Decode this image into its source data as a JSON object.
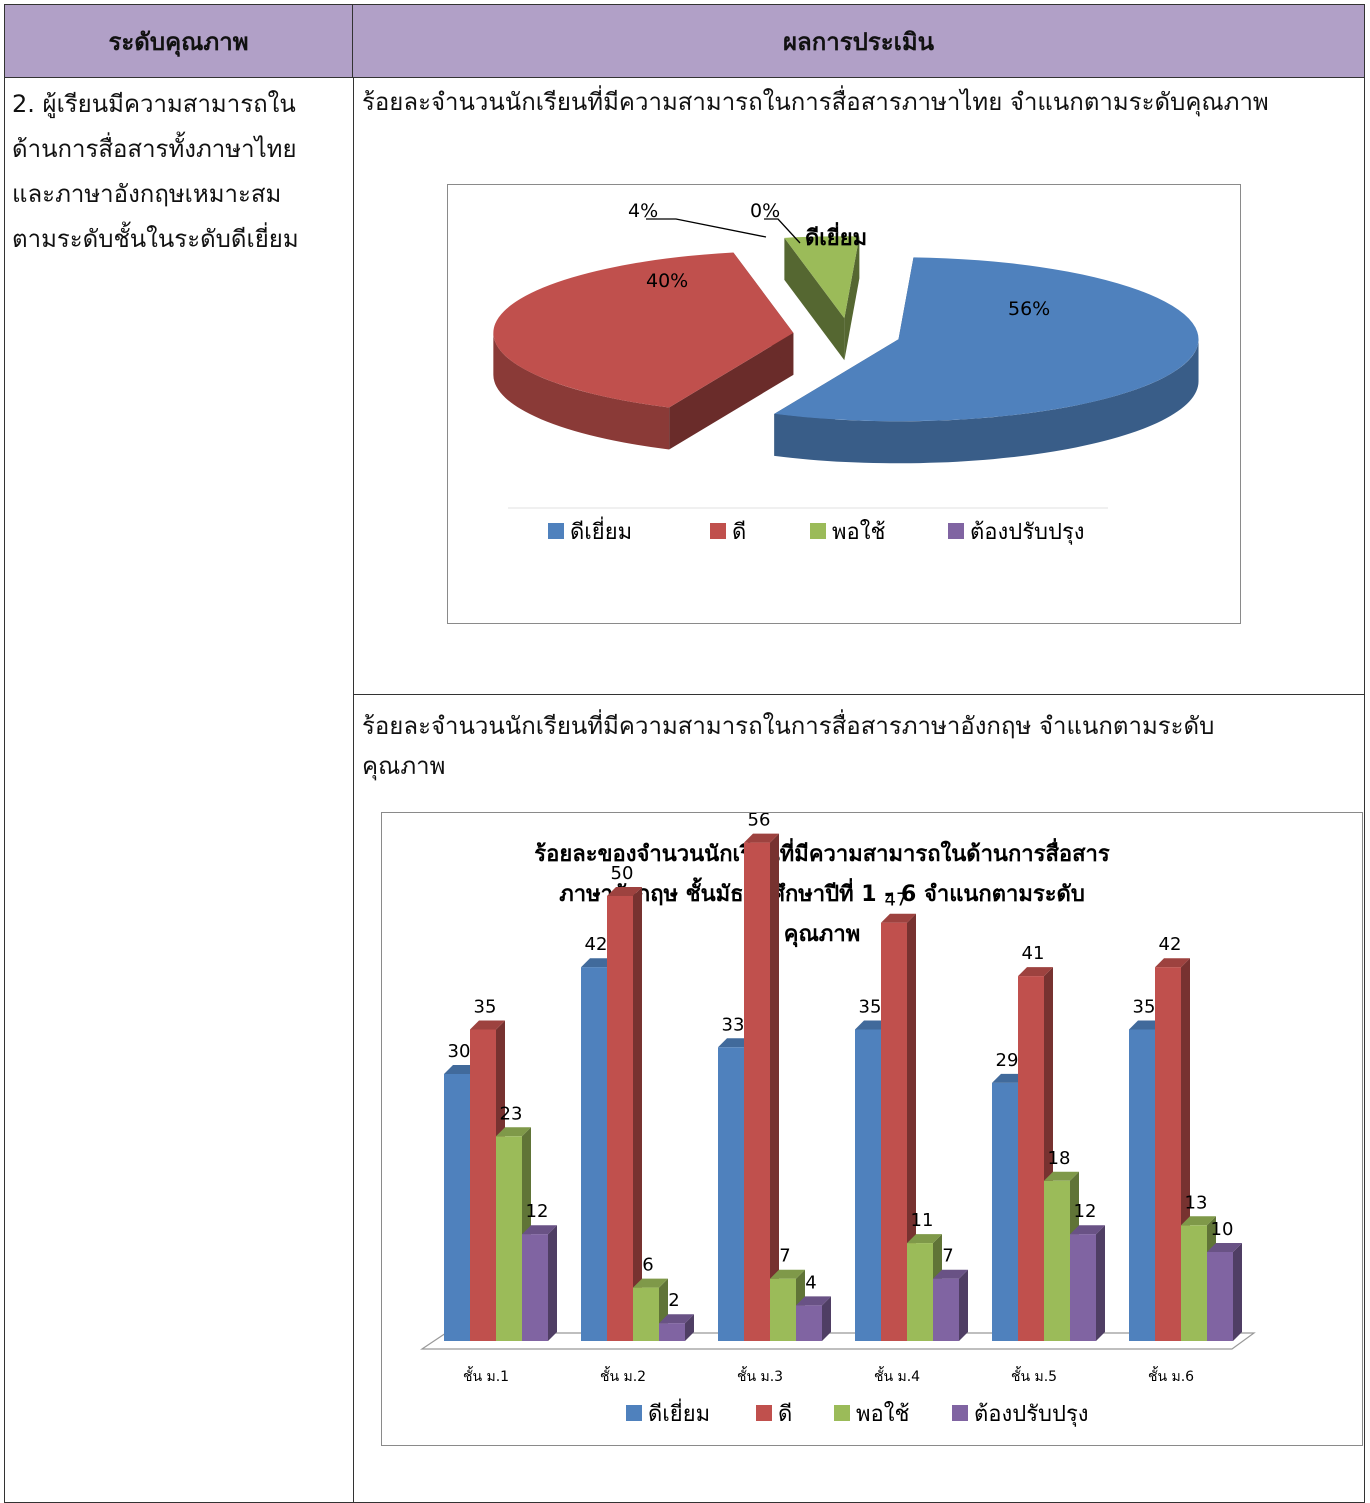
{
  "table": {
    "header_left": "ระดับคุณภาพ",
    "header_right": "ผลการประเมิน",
    "criteria_lines": [
      "2. ผู้เรียนมีความสามารถใน",
      "ด้านการสื่อสารทั้งภาษาไทย",
      "และภาษาอังกฤษเหมาะสม",
      "ตามระดับชั้นในระดับดีเยี่ยม"
    ],
    "caption_thai": "ร้อยละจำนวนนักเรียนที่มีความสามารถในการสื่อสารภาษาไทย จำแนกตามระดับคุณภาพ",
    "caption_english_lines": [
      "ร้อยละจำนวนนักเรียนที่มีความสามารถในการสื่อสารภาษาอังกฤษ จำแนกตามระดับ",
      "คุณภาพ"
    ]
  },
  "colors": {
    "blue": "#4f81bd",
    "red": "#c0504d",
    "green": "#9bbb59",
    "purple": "#8064a2",
    "header": "#b1a0c7"
  },
  "chart_data": [
    {
      "type": "pie",
      "title": "",
      "categories": [
        "ดีเยี่ยม",
        "ดี",
        "พอใช้",
        "ต้องปรับปรุง"
      ],
      "values": [
        56,
        40,
        4,
        0
      ],
      "data_labels": [
        "56%",
        "40%",
        "4%",
        "0%"
      ],
      "annotation": "ดีเยี่ยม",
      "legend": "bottom",
      "three_d": true,
      "exploded": true
    },
    {
      "type": "bar",
      "title": "ร้อยละของจำนวนนักเรียนที่มีความสามารถในด้านการสื่อสาร ภาษาอังกฤษ ชั้นมัธยมศึกษาปีที่ 1 - 6 จำแนกตามระดับ คุณภาพ",
      "title_lines": [
        "ร้อยละของจำนวนนักเรียนที่มีความสามารถในด้านการสื่อสาร",
        "ภาษาอังกฤษ ชั้นมัธยมศึกษาปีที่ 1 - 6  จำแนกตามระดับ",
        "คุณภาพ"
      ],
      "categories": [
        "ชั้น ม.1",
        "ชั้น ม.2",
        "ชั้น ม.3",
        "ชั้น ม.4",
        "ชั้น ม.5",
        "ชั้น ม.6"
      ],
      "series": [
        {
          "name": "ดีเยี่ยม",
          "values": [
            30,
            42,
            33,
            35,
            29,
            35
          ]
        },
        {
          "name": "ดี",
          "values": [
            35,
            50,
            56,
            47,
            41,
            42
          ]
        },
        {
          "name": "พอใช้",
          "values": [
            23,
            6,
            7,
            11,
            18,
            13
          ]
        },
        {
          "name": "ต้องปรับปรุง",
          "values": [
            12,
            2,
            4,
            7,
            12,
            10
          ]
        }
      ],
      "ylim": [
        0,
        60
      ],
      "grid": false,
      "legend": "bottom",
      "three_d": true
    }
  ]
}
